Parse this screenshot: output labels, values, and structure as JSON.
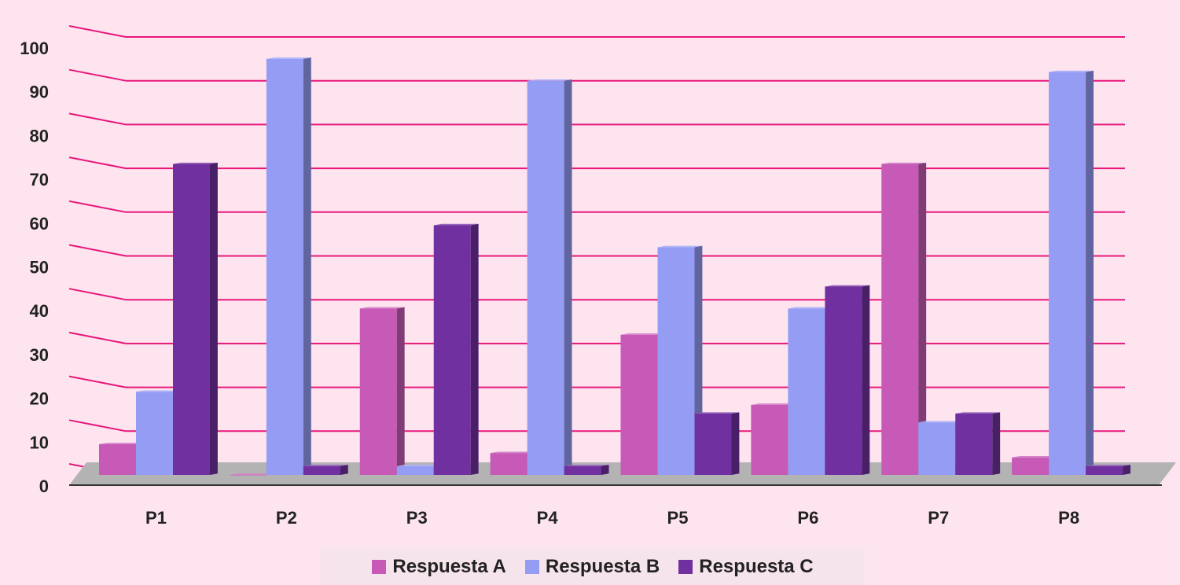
{
  "chart_data": {
    "type": "bar",
    "categories": [
      "P1",
      "P2",
      "P3",
      "P4",
      "P5",
      "P6",
      "P7",
      "P8"
    ],
    "series": [
      {
        "name": "Respuesta A",
        "values": [
          7,
          0,
          38,
          5,
          32,
          16,
          71,
          4
        ],
        "color": "#c65ab6"
      },
      {
        "name": "Respuesta B",
        "values": [
          19,
          95,
          2,
          90,
          52,
          38,
          12,
          92
        ],
        "color": "#959cf4"
      },
      {
        "name": "Respuesta C",
        "values": [
          71,
          2,
          57,
          2,
          14,
          43,
          14,
          2
        ],
        "color": "#7030a0"
      }
    ],
    "y_ticks": [
      "0",
      "10",
      "20",
      "30",
      "40",
      "50",
      "60",
      "70",
      "80",
      "90",
      "100"
    ],
    "ylim": [
      0,
      100
    ],
    "grid": true,
    "gridline_color": "#e8177a",
    "floor_color": "#b3b3b3",
    "legend_position": "bottom"
  }
}
